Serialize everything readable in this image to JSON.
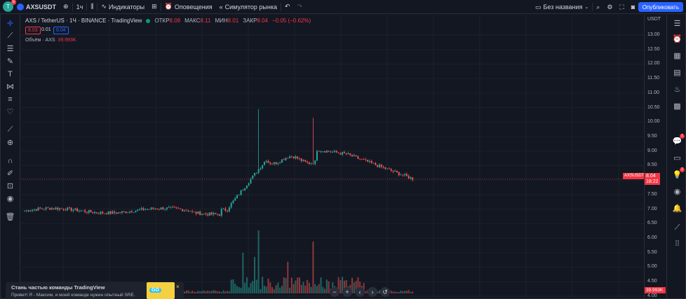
{
  "topbar": {
    "avatar_letter": "Т",
    "avatar_badge": "5",
    "symbol": "AXSUSDT",
    "interval": "1ч",
    "indicators_label": "Индикаторы",
    "alerts_label": "Оповещения",
    "replay_label": "Симулятор рынка",
    "layout_name": "Без названия",
    "publish_label": "Опубликовать"
  },
  "legend": {
    "title": "AXS / TetherUS · 1Ч · BINANCE · TradingView",
    "open_label": "ОТКР",
    "open_value": "8.09",
    "high_label": "МАКС",
    "high_value": "8.11",
    "low_label": "МИН",
    "low_value": "8.01",
    "close_label": "ЗАКР",
    "close_value": "8.04",
    "change_value": "−0.05 (−0.62%)",
    "sell_price": "8.03",
    "spread": "0.01",
    "buy_price": "8.04",
    "volume_label": "Объём · AXS",
    "volume_value": "39.993K"
  },
  "price_scale": {
    "currency": "USDT",
    "ticks": [
      "13.00",
      "12.50",
      "12.00",
      "11.50",
      "11.00",
      "10.50",
      "10.00",
      "9.50",
      "9.00",
      "8.50",
      "8.00",
      "7.50",
      "7.00",
      "6.50",
      "6.00",
      "5.50",
      "5.00",
      "4.50",
      "4.00"
    ],
    "last_price": "8.04",
    "countdown": "18:22",
    "symbol_tag": "AXSUSDT",
    "volume_tag": "39.993K"
  },
  "nav": {
    "zoom_out": "−",
    "zoom_in": "+",
    "left": "‹",
    "right": "›",
    "reset": "↺"
  },
  "promo": {
    "title": "Стань частью команды TradingView",
    "text": "Привет! Я - Максим, и моей команде нужен опытный SRE.",
    "badge": "GO",
    "close": "×"
  },
  "colors": {
    "up": "#26a69a",
    "down": "#ef5350",
    "background": "#131722",
    "accent": "#2962ff",
    "last_price_line": "#f23645"
  },
  "icons": {
    "left": [
      "crosshair-icon",
      "trend-line-icon",
      "fib-icon",
      "brush-icon",
      "text-icon",
      "pattern-icon",
      "prediction-icon",
      "favorite-icon",
      "ruler-icon",
      "zoom-icon",
      "magnet-icon",
      "lock-drawing-icon",
      "lock-icon",
      "eye-icon",
      "trash-icon"
    ],
    "right": [
      "watchlist-icon",
      "alerts-icon",
      "data-window-icon",
      "news-icon",
      "hotlist-icon",
      "calendar-icon",
      "ideas-icon",
      "chats-icon",
      "idea-streams-icon",
      "live-icon",
      "notifications-icon",
      "trading-panel-icon",
      "apps-icon"
    ]
  }
}
